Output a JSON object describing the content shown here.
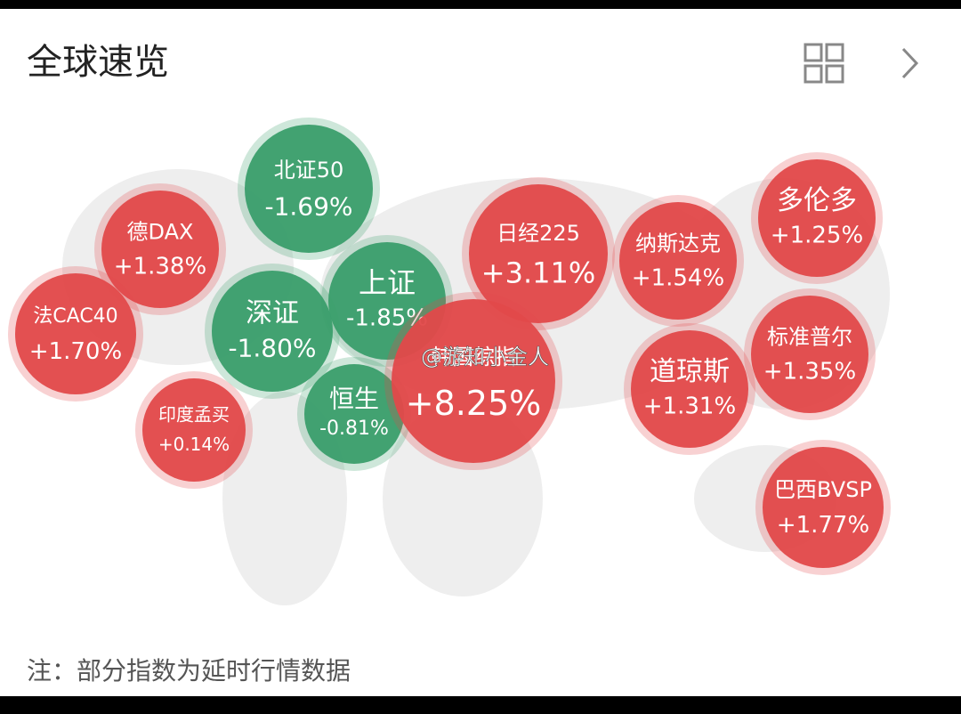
{
  "header": {
    "title": "全球速览"
  },
  "bubbles": [
    {
      "label": "北证50",
      "change": "-1.69%",
      "color": "#3a9e6b"
    },
    {
      "label": "德DAX",
      "change": "+1.38%",
      "color": "#e2494a"
    },
    {
      "label": "法CAC40",
      "change": "+1.70%",
      "color": "#e2494a"
    },
    {
      "label": "深证",
      "change": "-1.80%",
      "color": "#3a9e6b"
    },
    {
      "label": "上证",
      "change": "-1.85%",
      "color": "#3a9e6b"
    },
    {
      "label": "日经225",
      "change": "+3.11%",
      "color": "#e2494a"
    },
    {
      "label": "纳斯达克",
      "change": "+1.54%",
      "color": "#e2494a"
    },
    {
      "label": "多伦多",
      "change": "+1.25%",
      "color": "#e2494a"
    },
    {
      "label": "印度孟买",
      "change": "+0.14%",
      "color": "#e2494a"
    },
    {
      "label": "恒生",
      "change": "-0.81%",
      "color": "#3a9e6b"
    },
    {
      "label": "韩国综指",
      "change": "+8.25%",
      "color": "#e2494a"
    },
    {
      "label": "道琼斯",
      "change": "+1.31%",
      "color": "#e2494a"
    },
    {
      "label": "标准普尔",
      "change": "+1.35%",
      "color": "#e2494a"
    },
    {
      "label": "巴西BVSP",
      "change": "+1.77%",
      "color": "#e2494a"
    }
  ],
  "watermark": "@游知小金人",
  "footer": {
    "note": "注：部分指数为延时行情数据"
  }
}
